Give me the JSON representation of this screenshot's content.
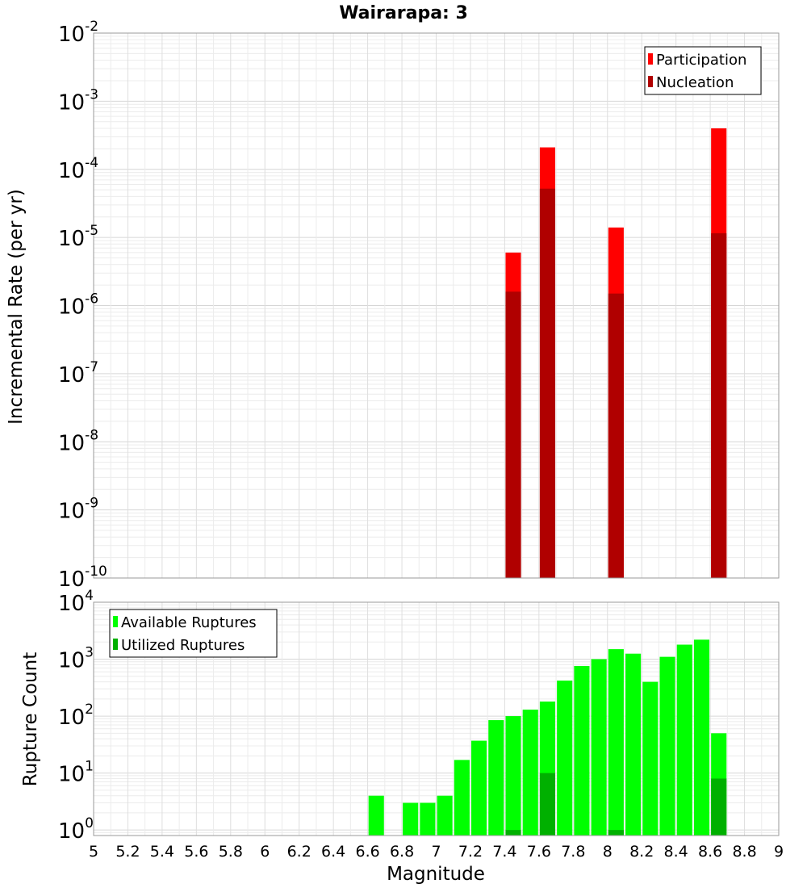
{
  "chart_data": [
    {
      "type": "bar",
      "title": "Wairarapa: 3",
      "xlabel": "",
      "ylabel": "Incremental Rate (per yr)",
      "xlim": [
        5,
        9
      ],
      "ylim": [
        1e-10,
        0.01
      ],
      "yscale": "log",
      "grid": true,
      "legend_position": "top-right",
      "series": [
        {
          "name": "Participation",
          "color": "#ff0000",
          "x": [
            7.45,
            7.65,
            8.05,
            8.65
          ],
          "values": [
            6e-06,
            0.00021,
            1.4e-05,
            0.0004
          ]
        },
        {
          "name": "Nucleation",
          "color": "#b00000",
          "x": [
            7.45,
            7.65,
            8.05,
            8.65
          ],
          "values": [
            1.6e-06,
            5.2e-05,
            1.5e-06,
            1.15e-05
          ]
        }
      ],
      "yticks": [
        {
          "base": "10",
          "exp": "-10"
        },
        {
          "base": "10",
          "exp": "-9"
        },
        {
          "base": "10",
          "exp": "-8"
        },
        {
          "base": "10",
          "exp": "-7"
        },
        {
          "base": "10",
          "exp": "-6"
        },
        {
          "base": "10",
          "exp": "-5"
        },
        {
          "base": "10",
          "exp": "-4"
        },
        {
          "base": "10",
          "exp": "-3"
        },
        {
          "base": "10",
          "exp": "-2"
        }
      ]
    },
    {
      "type": "bar",
      "title": "",
      "xlabel": "Magnitude",
      "ylabel": "Rupture Count",
      "xlim": [
        5,
        9
      ],
      "ylim": [
        0.8,
        10000
      ],
      "yscale": "log",
      "grid": true,
      "legend_position": "top-left",
      "bar_width": 0.09,
      "series": [
        {
          "name": "Available Ruptures",
          "color": "#00ff00",
          "x": [
            6.65,
            6.85,
            6.95,
            7.05,
            7.15,
            7.25,
            7.35,
            7.45,
            7.55,
            7.65,
            7.75,
            7.85,
            7.95,
            8.05,
            8.15,
            8.25,
            8.35,
            8.45,
            8.55,
            8.65
          ],
          "values": [
            4,
            3,
            3,
            4,
            17,
            37,
            85,
            100,
            130,
            180,
            420,
            760,
            1000,
            1500,
            1250,
            400,
            1100,
            1800,
            2200,
            50
          ]
        },
        {
          "name": "Utilized Ruptures",
          "color": "#00b000",
          "x": [
            7.45,
            7.65,
            8.05,
            8.65
          ],
          "values": [
            1,
            10,
            1,
            8
          ]
        }
      ],
      "xticks": [
        "5",
        "5.2",
        "5.4",
        "5.6",
        "5.8",
        "6",
        "6.2",
        "6.4",
        "6.6",
        "6.8",
        "7",
        "7.2",
        "7.4",
        "7.6",
        "7.8",
        "8",
        "8.2",
        "8.4",
        "8.6",
        "8.8",
        "9"
      ],
      "yticks": [
        {
          "base": "10",
          "exp": "0"
        },
        {
          "base": "10",
          "exp": "1"
        },
        {
          "base": "10",
          "exp": "2"
        },
        {
          "base": "10",
          "exp": "3"
        },
        {
          "base": "10",
          "exp": "4"
        }
      ]
    }
  ]
}
